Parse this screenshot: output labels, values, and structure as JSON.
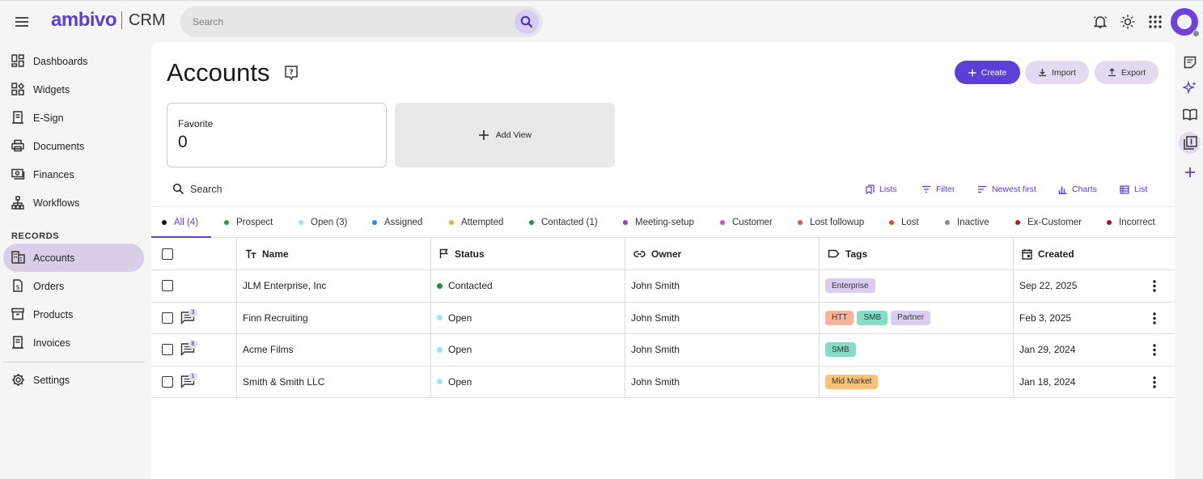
{
  "app": {
    "brand": "ambivo",
    "product": "CRM"
  },
  "search": {
    "placeholder": "Search"
  },
  "sidebar": {
    "items": [
      {
        "label": "Dashboards",
        "icon": "dashboard-icon"
      },
      {
        "label": "Widgets",
        "icon": "widgets-icon"
      },
      {
        "label": "E-Sign",
        "icon": "esign-icon"
      },
      {
        "label": "Documents",
        "icon": "printer-icon"
      },
      {
        "label": "Finances",
        "icon": "money-icon"
      },
      {
        "label": "Workflows",
        "icon": "workflow-icon"
      }
    ],
    "section_label": "RECORDS",
    "records": [
      {
        "label": "Accounts",
        "icon": "building-icon",
        "active": true
      },
      {
        "label": "Orders",
        "icon": "order-icon"
      },
      {
        "label": "Products",
        "icon": "archive-icon"
      },
      {
        "label": "Invoices",
        "icon": "invoice-icon"
      }
    ],
    "settings": {
      "label": "Settings",
      "icon": "gear-icon"
    }
  },
  "page": {
    "title": "Accounts",
    "buttons": {
      "create": "Create",
      "import": "Import",
      "export": "Export"
    },
    "favorite": {
      "label": "Favorite",
      "count": "0"
    },
    "add_view": "Add View",
    "list_search": "Search",
    "toolbar": {
      "lists": "Lists",
      "filter": "Filter",
      "sort": "Newest first",
      "charts": "Charts",
      "list": "List"
    }
  },
  "tabs": [
    {
      "label": "All (4)",
      "color": "#111111"
    },
    {
      "label": "Prospect",
      "color": "#1e9e55"
    },
    {
      "label": "Open (3)",
      "color": "#9ee6ee"
    },
    {
      "label": "Assigned",
      "color": "#1c8ae8"
    },
    {
      "label": "Attempted",
      "color": "#f2a93b"
    },
    {
      "label": "Contacted (1)",
      "color": "#1e8f4a"
    },
    {
      "label": "Meeting-setup",
      "color": "#8b3fe0"
    },
    {
      "label": "Customer",
      "color": "#e23ee0"
    },
    {
      "label": "Lost followup",
      "color": "#e8504a"
    },
    {
      "label": "Lost",
      "color": "#e8403a"
    },
    {
      "label": "Inactive",
      "color": "#8a8a8a"
    },
    {
      "label": "Ex-Customer",
      "color": "#b01a2a"
    },
    {
      "label": "Incorrect",
      "color": "#a8102a"
    }
  ],
  "table": {
    "columns": {
      "name": "Name",
      "status": "Status",
      "owner": "Owner",
      "tags": "Tags",
      "created": "Created"
    },
    "rows": [
      {
        "comments": "",
        "name": "JLM Enterprise, Inc",
        "status": "Contacted",
        "status_color": "#1e8f4a",
        "owner": "John Smith",
        "tags": [
          {
            "label": "Enterprise",
            "color": "#d9cdf2"
          }
        ],
        "created": "Sep 22, 2025"
      },
      {
        "comments": "3",
        "name": "Finn Recruiting",
        "status": "Open",
        "status_color": "#9ee6ee",
        "owner": "John Smith",
        "tags": [
          {
            "label": "HTT",
            "color": "#f7b39a"
          },
          {
            "label": "SMB",
            "color": "#86dcc7"
          },
          {
            "label": "Partner",
            "color": "#d9cdf2"
          }
        ],
        "created": "Feb 3, 2025"
      },
      {
        "comments": "8",
        "name": "Acme Films",
        "status": "Open",
        "status_color": "#9ee6ee",
        "owner": "John Smith",
        "tags": [
          {
            "label": "SMB",
            "color": "#86dcc7"
          }
        ],
        "created": "Jan 29, 2024"
      },
      {
        "comments": "1",
        "name": "Smith & Smith LLC",
        "status": "Open",
        "status_color": "#9ee6ee",
        "owner": "John Smith",
        "tags": [
          {
            "label": "Mid Market",
            "color": "#f7c27a"
          }
        ],
        "created": "Jan 18, 2024"
      }
    ]
  },
  "colors": {
    "accent": "#5b3fd6",
    "accent_light": "#e3d9f1",
    "active_nav": "#d9cde7"
  }
}
